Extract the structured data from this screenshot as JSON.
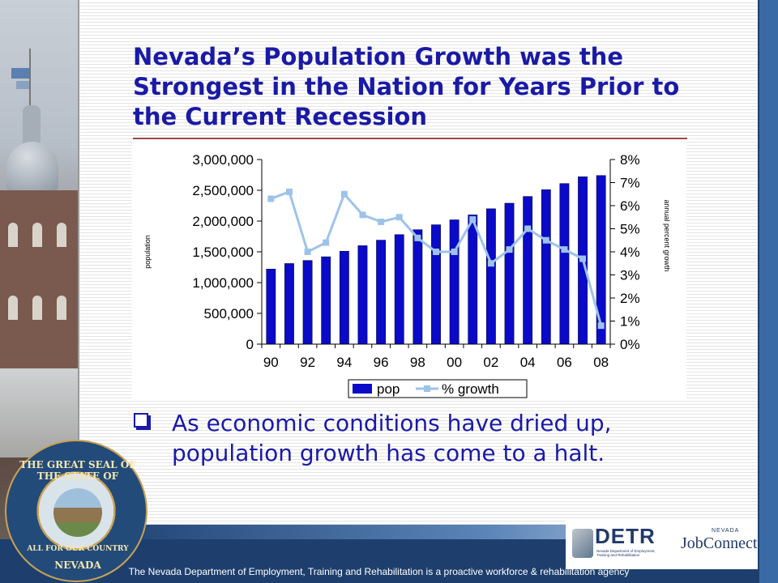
{
  "slide": {
    "title": "Nevada’s Population Growth was the Strongest in the Nation for Years Prior to the Current Recession",
    "bullet": "As economic conditions have dried up, population growth has come to a halt.",
    "footer": "The Nevada Department of Employment, Training and Rehabilitation is a proactive workforce & rehabilitation agency"
  },
  "seal": {
    "top_text": "THE GREAT SEAL OF THE STATE OF",
    "motto": "ALL FOR OUR COUNTRY",
    "state": "NEVADA"
  },
  "logos": {
    "detr": "DETR",
    "detr_sub": "Nevada Department of Employment, Training and Rehabilitation",
    "jobconnect_state": "NEVADA",
    "jobconnect": "JobConnect"
  },
  "colors": {
    "title": "#1a1aa6",
    "bar_fill": "#0a0ac8",
    "line": "#9ec3ea",
    "footer": "#1e3f6d"
  },
  "chart_data": {
    "type": "bar",
    "categories": [
      "90",
      "91",
      "92",
      "93",
      "94",
      "95",
      "96",
      "97",
      "98",
      "99",
      "00",
      "01",
      "02",
      "03",
      "04",
      "05",
      "06",
      "07",
      "08"
    ],
    "x_tick_labels": [
      "90",
      "92",
      "94",
      "96",
      "98",
      "00",
      "02",
      "04",
      "06",
      "08"
    ],
    "ylabel": "population",
    "y2label": "annual percent growth",
    "ylim": [
      0,
      3000000
    ],
    "y_ticks": [
      "0",
      "500,000",
      "1,000,000",
      "1,500,000",
      "2,000,000",
      "2,500,000",
      "3,000,000"
    ],
    "y2lim": [
      0,
      8
    ],
    "y2_ticks": [
      "0%",
      "1%",
      "2%",
      "3%",
      "4%",
      "5%",
      "6%",
      "7%",
      "8%"
    ],
    "legend_position": "bottom",
    "series": [
      {
        "name": "pop",
        "type": "bar",
        "axis": "left",
        "values": [
          1220000,
          1310000,
          1360000,
          1420000,
          1510000,
          1600000,
          1690000,
          1780000,
          1860000,
          1940000,
          2020000,
          2100000,
          2200000,
          2290000,
          2400000,
          2510000,
          2610000,
          2720000,
          2740000
        ]
      },
      {
        "name": "% growth",
        "type": "line",
        "axis": "right",
        "values": [
          6.3,
          6.6,
          4.0,
          4.4,
          6.5,
          5.6,
          5.3,
          5.5,
          4.6,
          4.0,
          4.0,
          5.4,
          3.5,
          4.1,
          5.0,
          4.5,
          4.1,
          3.7,
          0.8
        ]
      }
    ]
  }
}
